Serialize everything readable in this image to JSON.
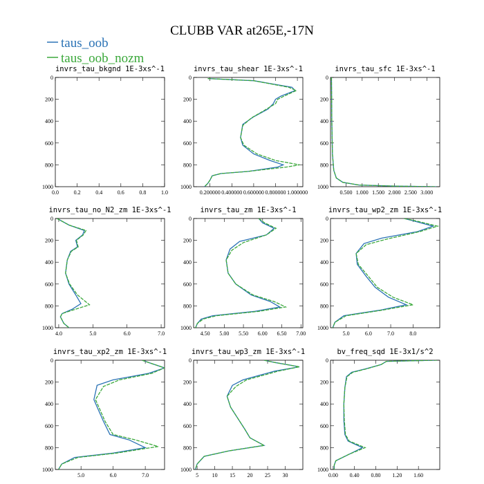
{
  "figure": {
    "title": "CLUBB VAR at265E,-17N",
    "legend": [
      {
        "label": "taus_oob",
        "color": "#2a72b5"
      },
      {
        "label": "taus_oob_nozm",
        "color": "#3aa83a"
      }
    ]
  },
  "chart_data": [
    {
      "type": "line",
      "title": "invrs_tau_bkgnd",
      "units": "1E-3xs^-1",
      "xlim": [
        0,
        1
      ],
      "ylim": [
        1000,
        0
      ],
      "xticks": [
        0,
        0.2,
        0.4,
        0.6,
        0.8,
        1.0
      ],
      "xtick_labels": [
        "0.0",
        "0.2",
        "0.4",
        "0.6",
        "0.8",
        "1.0"
      ],
      "yticks": [
        0,
        200,
        400,
        600,
        800,
        1000
      ],
      "ytick_labels": [
        "0",
        "200",
        "400",
        "600",
        "800",
        "1000"
      ],
      "series": []
    },
    {
      "type": "line",
      "title": "invrs_tau_shear",
      "units": "1E-3xs^-1",
      "xlim": [
        0.05,
        1.05
      ],
      "ylim": [
        1000,
        0
      ],
      "xticks": [
        0.2,
        0.4,
        0.6,
        0.8,
        1.0
      ],
      "xtick_labels": [
        "0.200000",
        "0.400000",
        "0.600000",
        "0.800000",
        "1.000000"
      ],
      "yticks": [
        0,
        200,
        400,
        600,
        800,
        1000
      ],
      "ytick_labels": [
        "0",
        "200",
        "400",
        "600",
        "800",
        "1000"
      ],
      "series": [
        {
          "color": "#2a72b5",
          "x": [
            0.18,
            0.6,
            0.95,
            0.98,
            0.85,
            0.8,
            0.78,
            0.73,
            0.6,
            0.5,
            0.48,
            0.5,
            0.6,
            0.75,
            0.87,
            0.82,
            0.55,
            0.3,
            0.22,
            0.2,
            0.18,
            0.15
          ],
          "y": [
            10,
            30,
            90,
            120,
            170,
            200,
            240,
            290,
            360,
            430,
            550,
            620,
            700,
            760,
            800,
            820,
            860,
            880,
            900,
            940,
            970,
            1000
          ]
        },
        {
          "color": "#3aa83a",
          "x": [
            0.18,
            0.6,
            0.92,
            0.99,
            0.88,
            0.82,
            0.8,
            0.7,
            0.58,
            0.5,
            0.48,
            0.51,
            0.63,
            0.8,
            1.02,
            0.9,
            0.55,
            0.3,
            0.22,
            0.2,
            0.18,
            0.15
          ],
          "y": [
            10,
            30,
            90,
            120,
            170,
            200,
            240,
            300,
            370,
            440,
            550,
            620,
            700,
            760,
            800,
            820,
            860,
            880,
            900,
            940,
            970,
            1000
          ]
        }
      ]
    },
    {
      "type": "line",
      "title": "invrs_tau_sfc",
      "units": "1E-3xs^-1",
      "xlim": [
        0.02,
        3.4
      ],
      "ylim": [
        1000,
        0
      ],
      "xticks": [
        0.5,
        1.0,
        1.5,
        2.0,
        2.5,
        3.0
      ],
      "xtick_labels": [
        "0.500",
        "1.000",
        "1.500",
        "2.000",
        "2.500",
        "3.000"
      ],
      "yticks": [
        0,
        200,
        400,
        600,
        800,
        1000
      ],
      "ytick_labels": [
        "0",
        "200",
        "400",
        "600",
        "800",
        "1000"
      ],
      "series": [
        {
          "color": "#2a72b5",
          "x": [
            0.05,
            0.06,
            0.08,
            0.12,
            0.2,
            0.4,
            0.9,
            2.0,
            3.3
          ],
          "y": [
            0,
            400,
            700,
            850,
            920,
            960,
            985,
            995,
            1000
          ]
        },
        {
          "color": "#3aa83a",
          "x": [
            0.05,
            0.06,
            0.08,
            0.12,
            0.2,
            0.4,
            0.9,
            2.0,
            3.3
          ],
          "y": [
            0,
            400,
            700,
            850,
            920,
            960,
            985,
            995,
            1000
          ]
        }
      ]
    },
    {
      "type": "line",
      "title": "invrs_tau_no_N2_zm",
      "units": "1E-3xs^-1",
      "xlim": [
        3.9,
        7.1
      ],
      "ylim": [
        1000,
        0
      ],
      "xticks": [
        4.0,
        5.0,
        6.0,
        7.0
      ],
      "xtick_labels": [
        "4.0",
        "5.0",
        "6.0",
        "7.0"
      ],
      "yticks": [
        0,
        200,
        400,
        600,
        800,
        1000
      ],
      "ytick_labels": [
        "0",
        "200",
        "400",
        "600",
        "800",
        "1000"
      ],
      "series": [
        {
          "color": "#2a72b5",
          "x": [
            3.95,
            4.3,
            4.75,
            4.7,
            4.5,
            4.55,
            4.35,
            4.25,
            4.2,
            4.3,
            4.5,
            4.65,
            4.4,
            4.1,
            4.05,
            4.15,
            4.3
          ],
          "y": [
            0,
            60,
            110,
            150,
            200,
            260,
            300,
            380,
            500,
            600,
            700,
            780,
            830,
            870,
            900,
            960,
            1000
          ]
        },
        {
          "color": "#3aa83a",
          "x": [
            3.95,
            4.3,
            4.8,
            4.72,
            4.52,
            4.57,
            4.37,
            4.25,
            4.2,
            4.32,
            4.55,
            4.9,
            4.5,
            4.1,
            4.05,
            4.15,
            4.3
          ],
          "y": [
            0,
            60,
            110,
            150,
            200,
            260,
            300,
            380,
            500,
            600,
            700,
            790,
            830,
            870,
            900,
            960,
            1000
          ]
        }
      ]
    },
    {
      "type": "line",
      "title": "invrs_tau_zm",
      "units": "1E-3xs^-1",
      "xlim": [
        4.2,
        7.05
      ],
      "ylim": [
        1000,
        0
      ],
      "xticks": [
        4.5,
        5.0,
        5.5,
        6.0,
        6.5,
        7.0
      ],
      "xtick_labels": [
        "4.50",
        "5.00",
        "5.50",
        "6.00",
        "6.50",
        "7.00"
      ],
      "yticks": [
        0,
        200,
        400,
        600,
        800,
        1000
      ],
      "ytick_labels": [
        "0",
        "200",
        "400",
        "600",
        "800",
        "1000"
      ],
      "series": [
        {
          "color": "#2a72b5",
          "x": [
            5.9,
            6.0,
            6.3,
            6.1,
            5.4,
            5.15,
            5.05,
            5.1,
            5.3,
            5.7,
            6.2,
            6.45,
            5.8,
            4.7,
            4.4,
            4.3,
            4.25
          ],
          "y": [
            0,
            40,
            90,
            150,
            210,
            280,
            380,
            500,
            600,
            700,
            760,
            810,
            850,
            890,
            920,
            960,
            1000
          ]
        },
        {
          "color": "#3aa83a",
          "x": [
            5.9,
            6.05,
            6.35,
            6.1,
            5.5,
            5.2,
            5.05,
            5.1,
            5.3,
            5.75,
            6.3,
            6.6,
            5.9,
            4.8,
            4.45,
            4.3,
            4.25
          ],
          "y": [
            0,
            40,
            90,
            150,
            220,
            290,
            380,
            500,
            600,
            700,
            760,
            810,
            850,
            890,
            920,
            960,
            1000
          ]
        }
      ]
    },
    {
      "type": "line",
      "title": "invrs_tau_wp2_zm",
      "units": "1E-3xs^-1",
      "xlim": [
        4.3,
        9.2
      ],
      "ylim": [
        1000,
        0
      ],
      "xticks": [
        5.0,
        6.0,
        7.0,
        8.0
      ],
      "xtick_labels": [
        "5.0",
        "6.0",
        "7.0",
        "8.0"
      ],
      "yticks": [
        0,
        200,
        400,
        600,
        800,
        1000
      ],
      "ytick_labels": [
        "0",
        "200",
        "400",
        "600",
        "800",
        "1000"
      ],
      "series": [
        {
          "color": "#2a72b5",
          "x": [
            7.6,
            8.0,
            8.9,
            8.2,
            6.6,
            5.8,
            5.45,
            5.5,
            5.9,
            6.3,
            6.9,
            7.7,
            6.5,
            4.9,
            4.5,
            4.4
          ],
          "y": [
            0,
            20,
            70,
            120,
            180,
            230,
            320,
            420,
            530,
            630,
            720,
            790,
            840,
            890,
            950,
            1000
          ]
        },
        {
          "color": "#3aa83a",
          "x": [
            7.6,
            8.1,
            9.1,
            8.3,
            6.8,
            5.9,
            5.45,
            5.55,
            6.0,
            6.4,
            7.1,
            8.0,
            6.6,
            5.0,
            4.5,
            4.4
          ],
          "y": [
            0,
            20,
            70,
            120,
            190,
            240,
            320,
            420,
            530,
            630,
            720,
            790,
            840,
            890,
            950,
            1000
          ]
        }
      ]
    },
    {
      "type": "line",
      "title": "invrs_tau_xp2_zm",
      "units": "1E-3xs^-1",
      "xlim": [
        4.2,
        7.6
      ],
      "ylim": [
        1000,
        0
      ],
      "xticks": [
        5.0,
        6.0,
        7.0
      ],
      "xtick_labels": [
        "5.0",
        "6.0",
        "7.0"
      ],
      "yticks": [
        0,
        200,
        400,
        600,
        800,
        1000
      ],
      "ytick_labels": [
        "0",
        "200",
        "400",
        "600",
        "800",
        "1000"
      ],
      "series": [
        {
          "color": "#2a72b5",
          "x": [
            6.9,
            7.1,
            7.6,
            7.1,
            6.0,
            5.5,
            5.4,
            5.55,
            5.7,
            5.9,
            6.5,
            7.0,
            6.0,
            4.8,
            4.4,
            4.3
          ],
          "y": [
            0,
            20,
            70,
            120,
            180,
            230,
            360,
            460,
            560,
            680,
            730,
            800,
            850,
            890,
            950,
            1000
          ]
        },
        {
          "color": "#3aa83a",
          "x": [
            6.9,
            7.1,
            7.6,
            7.2,
            6.2,
            5.7,
            5.45,
            5.6,
            5.75,
            6.0,
            6.7,
            7.4,
            6.1,
            4.9,
            4.4,
            4.3
          ],
          "y": [
            0,
            20,
            70,
            120,
            180,
            240,
            360,
            460,
            560,
            680,
            730,
            790,
            850,
            890,
            950,
            1000
          ]
        }
      ]
    },
    {
      "type": "line",
      "title": "invrs_tau_wp3_zm",
      "units": "1E-3xs^-1",
      "xlim": [
        4,
        35
      ],
      "ylim": [
        1000,
        0
      ],
      "xticks": [
        5,
        10,
        15,
        20,
        25,
        30
      ],
      "xtick_labels": [
        "5",
        "10",
        "15",
        "20",
        "25",
        "30"
      ],
      "yticks": [
        0,
        200,
        400,
        600,
        800,
        1000
      ],
      "ytick_labels": [
        "0",
        "200",
        "400",
        "600",
        "800",
        "1000"
      ],
      "series": [
        {
          "color": "#2a72b5",
          "x": [
            24,
            27,
            34,
            27,
            18,
            15,
            13.5,
            14.5,
            16.5,
            18.5,
            20,
            24,
            14,
            7,
            5,
            4.5
          ],
          "y": [
            0,
            20,
            60,
            100,
            180,
            230,
            330,
            430,
            530,
            630,
            710,
            780,
            830,
            880,
            950,
            1000
          ]
        },
        {
          "color": "#3aa83a",
          "x": [
            24,
            27,
            34,
            28,
            19,
            16,
            13.5,
            14.5,
            16.5,
            18.5,
            20,
            24,
            14,
            7,
            5,
            4.5
          ],
          "y": [
            0,
            20,
            60,
            100,
            180,
            240,
            330,
            430,
            530,
            630,
            710,
            780,
            830,
            880,
            950,
            1000
          ]
        }
      ]
    },
    {
      "type": "line",
      "title": "bv_freq_sqd",
      "units": "1E-3x1/s^2",
      "xlim": [
        -0.05,
        2.0
      ],
      "ylim": [
        1000,
        0
      ],
      "xticks": [
        0.0,
        0.4,
        0.8,
        1.2,
        1.6
      ],
      "xtick_labels": [
        "0.00",
        "0.40",
        "0.80",
        "1.20",
        "1.60"
      ],
      "yticks": [
        0,
        200,
        400,
        600,
        800,
        1000
      ],
      "ytick_labels": [
        "0",
        "200",
        "400",
        "600",
        "800",
        "1000"
      ],
      "series": [
        {
          "color": "#2a72b5",
          "x": [
            1.95,
            1.0,
            0.9,
            0.6,
            0.35,
            0.25,
            0.22,
            0.2,
            0.2,
            0.22,
            0.28,
            0.55,
            0.3,
            0.05,
            0.02,
            0.02
          ],
          "y": [
            0,
            10,
            40,
            80,
            110,
            150,
            250,
            400,
            550,
            680,
            740,
            800,
            860,
            920,
            960,
            1000
          ]
        },
        {
          "color": "#3aa83a",
          "x": [
            1.95,
            1.0,
            0.9,
            0.62,
            0.37,
            0.26,
            0.22,
            0.2,
            0.21,
            0.23,
            0.3,
            0.6,
            0.3,
            0.05,
            0.02,
            0.02
          ],
          "y": [
            0,
            10,
            40,
            80,
            110,
            150,
            250,
            400,
            550,
            680,
            740,
            800,
            860,
            920,
            960,
            1000
          ]
        }
      ]
    }
  ]
}
